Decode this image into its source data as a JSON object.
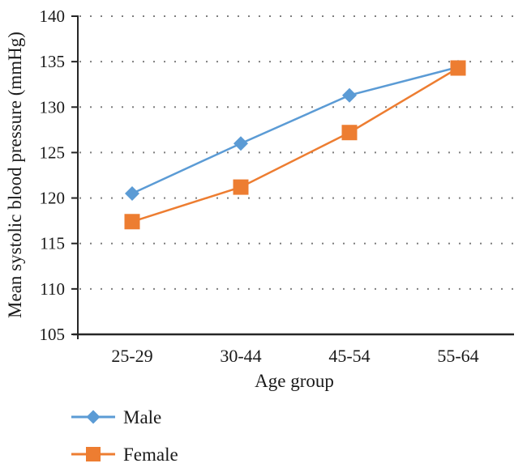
{
  "chart_data": {
    "type": "line",
    "title": "",
    "categories": [
      "25-29",
      "30-44",
      "45-54",
      "55-64"
    ],
    "series": [
      {
        "name": "Male",
        "marker": "diamond",
        "color": "#5B9BD5",
        "values": [
          120.5,
          126.0,
          131.3,
          134.4
        ]
      },
      {
        "name": "Female",
        "marker": "square",
        "color": "#ED7D31",
        "values": [
          117.4,
          121.2,
          127.2,
          134.3
        ]
      }
    ],
    "xlabel": "Age group",
    "ylabel": "Mean systolic blood pressure (mmHg)",
    "ylim": [
      105,
      140
    ],
    "yticks": [
      105,
      110,
      115,
      120,
      125,
      130,
      135,
      140
    ],
    "grid": "horizontal-dotted",
    "legend_position": "bottom-left"
  },
  "colors": {
    "male_series": "#5B9BD5",
    "female_series": "#ED7D31",
    "axis": "#262626",
    "grid_dot": "#7f7f7f",
    "text": "#1a1a1a",
    "background": "#ffffff"
  }
}
